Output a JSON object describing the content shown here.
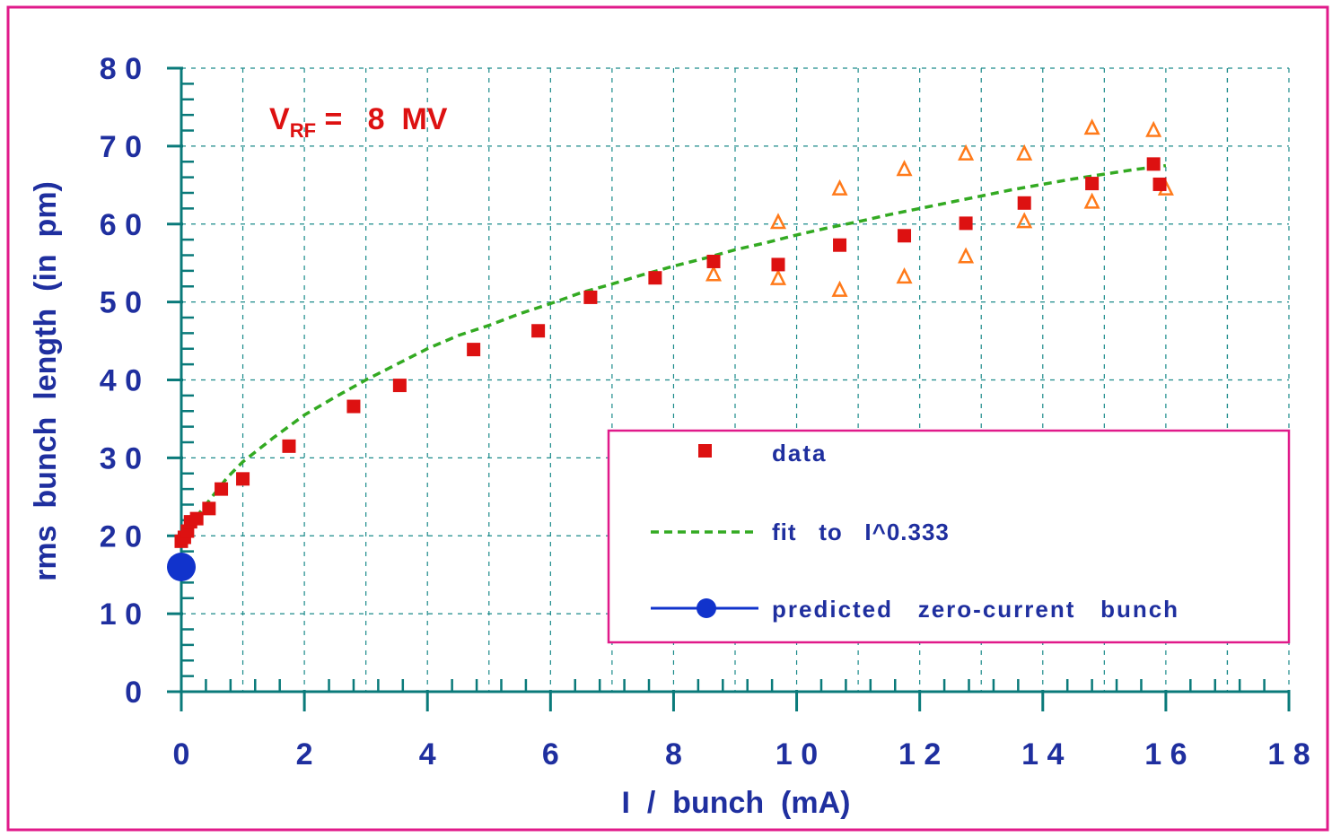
{
  "chart_data": {
    "type": "scatter",
    "annotation": {
      "main": "V",
      "subscript": "RF",
      "rest": " =   8  MV"
    },
    "xlabel": "I  /  bunch  (mA)",
    "ylabel": "rms  bunch  length  (in  pm)",
    "xlim": [
      0,
      18
    ],
    "ylim": [
      0,
      80
    ],
    "x_ticks": [
      0,
      2,
      4,
      6,
      8,
      10,
      12,
      14,
      16,
      18
    ],
    "x_tick_labels": [
      "0",
      "2",
      "4",
      "6",
      "8",
      "1 0",
      "1 2",
      "1 4",
      "1 6",
      "1 8"
    ],
    "y_ticks": [
      0,
      10,
      20,
      30,
      40,
      50,
      60,
      70,
      80
    ],
    "y_tick_labels": [
      "0",
      "1 0",
      "2 0",
      "3 0",
      "4 0",
      "5 0",
      "6 0",
      "7 0",
      "8 0"
    ],
    "grid": true,
    "legend_position": "bottom-right",
    "legend": {
      "data": "data",
      "fit": "fit   to   I^0.333",
      "predicted": "predicted   zero-current   bunch"
    },
    "series": [
      {
        "name": "data",
        "marker": "square",
        "color": "#dd1111",
        "x": [
          0.0,
          0.05,
          0.1,
          0.15,
          0.25,
          0.45,
          0.65,
          1.0,
          1.75,
          2.8,
          3.55,
          4.75,
          5.8,
          6.65,
          7.7,
          8.65,
          9.7,
          10.7,
          11.75,
          12.75,
          13.7,
          14.8,
          15.8,
          15.9
        ],
        "y": [
          19.3,
          19.8,
          20.6,
          21.8,
          22.2,
          23.5,
          26.0,
          27.3,
          31.5,
          36.6,
          39.3,
          43.9,
          46.3,
          50.6,
          53.1,
          55.2,
          54.8,
          57.3,
          58.5,
          60.1,
          62.7,
          65.2,
          67.7,
          65.1
        ]
      },
      {
        "name": "",
        "marker": "triangle",
        "color": "#ff7a1a",
        "x": [
          8.65,
          9.7,
          9.7,
          10.7,
          10.7,
          11.75,
          11.75,
          12.75,
          12.75,
          13.7,
          13.7,
          14.8,
          14.8,
          15.8,
          16.0
        ],
        "y": [
          53.5,
          60.2,
          53.0,
          64.5,
          51.5,
          67.0,
          53.2,
          69.0,
          55.8,
          69.0,
          60.3,
          72.3,
          62.8,
          72.0,
          64.5
        ]
      },
      {
        "name": "fit   to   I^0.333",
        "style": "dashed",
        "color": "#33aa22",
        "x": [
          0.0,
          0.15,
          0.3,
          0.5,
          0.75,
          1.0,
          1.5,
          2.0,
          2.5,
          3.0,
          3.5,
          4.0,
          4.5,
          5.0,
          5.5,
          6.0,
          6.5,
          7.0,
          7.5,
          8.0,
          8.5,
          9.0,
          9.5,
          10.0,
          10.5,
          11.0,
          11.5,
          12.0,
          12.5,
          13.0,
          13.5,
          14.0,
          14.5,
          15.0,
          15.5,
          16.0
        ],
        "y": [
          19.5,
          21.5,
          23.0,
          25.0,
          27.5,
          29.5,
          32.6,
          35.5,
          37.8,
          40.0,
          42.0,
          44.0,
          45.7,
          47.0,
          48.5,
          49.8,
          51.2,
          52.3,
          53.5,
          54.6,
          55.6,
          56.7,
          57.6,
          58.6,
          59.5,
          60.3,
          61.2,
          62.0,
          62.8,
          63.6,
          64.4,
          65.1,
          65.8,
          66.4,
          67.0,
          67.5
        ]
      },
      {
        "name": "predicted   zero-current   bunch",
        "marker": "circle",
        "color": "#1133cc",
        "x": [
          0
        ],
        "y": [
          16
        ]
      }
    ]
  },
  "colors": {
    "frame": "#e01a8a",
    "axis": "#0a7a7a",
    "grid": "#1a8a8a",
    "tick_labels": "#1f2f9f",
    "annotation": "#dd1111"
  }
}
